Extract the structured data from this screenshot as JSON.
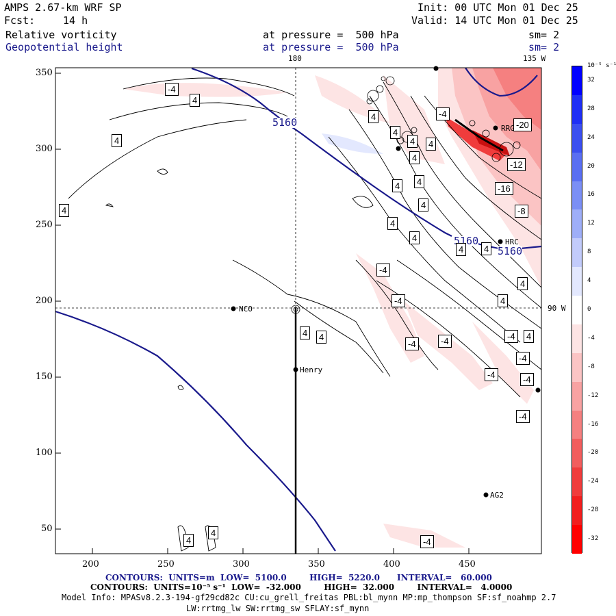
{
  "header": {
    "model": "AMPS 2.67-km WRF SP",
    "fcst_label": "Fcst:",
    "fcst_value": "14 h",
    "init": "Init: 00 UTC Mon 01 Dec 25",
    "valid": "Valid: 14 UTC Mon 01 Dec 25",
    "field1": "Relative vorticity",
    "field1_level": "at pressure =  500 hPa",
    "field1_sm": "sm= 2",
    "field2": "Geopotential height",
    "field2_level": "at pressure =  500 hPa",
    "field2_sm": "sm= 2"
  },
  "map": {
    "lon_labels": {
      "top_180": "180",
      "top_135w": "135 W",
      "right_90w": "90 W"
    },
    "x_ticks": [
      "200",
      "250",
      "300",
      "350",
      "400",
      "450"
    ],
    "y_ticks": [
      "350",
      "300",
      "250",
      "200",
      "150",
      "100",
      "50"
    ],
    "stations": [
      {
        "id": "NCO",
        "label": "NCO"
      },
      {
        "id": "Henry",
        "label": "Henry"
      },
      {
        "id": "AG2",
        "label": "AG2"
      },
      {
        "id": "RRG",
        "label": "RRG"
      },
      {
        "id": "HRC",
        "label": "HRC"
      }
    ],
    "height_contour_labels": [
      "5160",
      "5160",
      "5160"
    ],
    "vort_labels": [
      "-4",
      "4",
      "4",
      "4",
      "4",
      "4",
      "4",
      "4",
      "4",
      "4",
      "4",
      "4",
      "4",
      "-4",
      "-4",
      "4",
      "4",
      "-4",
      "-4",
      "-4",
      "-4",
      "4",
      "4",
      "4",
      "4",
      "-4",
      "-4",
      "-4",
      "4",
      "4",
      "-4",
      "-8",
      "-12",
      "-16",
      "-20",
      "-4",
      "4",
      "4"
    ]
  },
  "colorbar": {
    "unit": "10⁻⁵ s⁻¹",
    "labels": [
      "32",
      "28",
      "24",
      "20",
      "16",
      "12",
      "8",
      "4",
      "0",
      "-4",
      "-8",
      "-12",
      "-16",
      "-20",
      "-24",
      "-28",
      "-32"
    ],
    "colors": [
      "#0000ff",
      "#1f2ff5",
      "#3b4ff0",
      "#5a6ff2",
      "#7b8ff5",
      "#9eaef8",
      "#c2cbfb",
      "#e3e8fe",
      "#ffffff",
      "#fde4e4",
      "#fbc4c4",
      "#f8a2a2",
      "#f58080",
      "#f25e5e",
      "#f03c3c",
      "#f21e1e",
      "#ff0000"
    ]
  },
  "footer": {
    "line1": "CONTOURS:  UNITS=m  LOW=  5100.0        HIGH=  5220.0      INTERVAL=   60.000",
    "line2": "CONTOURS:  UNITS=10⁻⁵ s⁻¹  LOW=  -32.000        HIGH=  32.000        INTERVAL=   4.0000",
    "line3": "Model Info: MPASv8.2.3-194-gf29cd82c CU:cu_grell_freitas PBL:bl_mynn MP:mp_thompson SF:sf_noahmp 2.7",
    "line4": "LW:rrtmg_lw SW:rrtmg_sw SFLAY:sf_mynn"
  },
  "colors": {
    "height_contour": "#1a1a8c",
    "negative_vort": "#ff0000",
    "positive_vort": "#0000ff"
  }
}
